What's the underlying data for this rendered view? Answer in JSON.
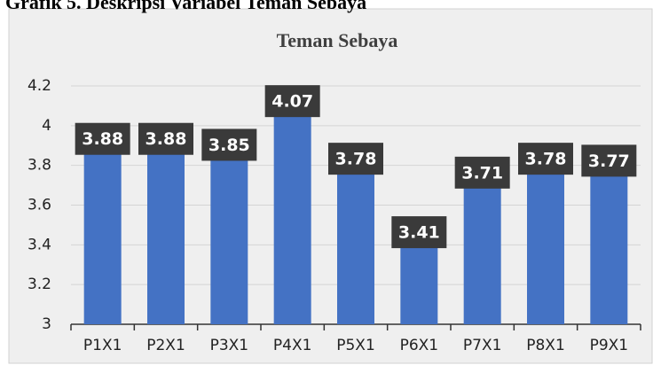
{
  "heading": "Grafik 5. Deskripsi Variabel Teman Sebaya",
  "chart_data": {
    "type": "bar",
    "title": "Teman Sebaya",
    "categories": [
      "P1X1",
      "P2X1",
      "P3X1",
      "P4X1",
      "P5X1",
      "P6X1",
      "P7X1",
      "P8X1",
      "P9X1"
    ],
    "values": [
      3.88,
      3.88,
      3.85,
      4.07,
      3.78,
      3.41,
      3.71,
      3.78,
      3.77
    ],
    "color": "#4472c4",
    "ylim": [
      3,
      4.2
    ],
    "yticks": [
      3,
      3.2,
      3.4,
      3.6,
      3.8,
      4,
      4.2
    ],
    "grid": true
  }
}
